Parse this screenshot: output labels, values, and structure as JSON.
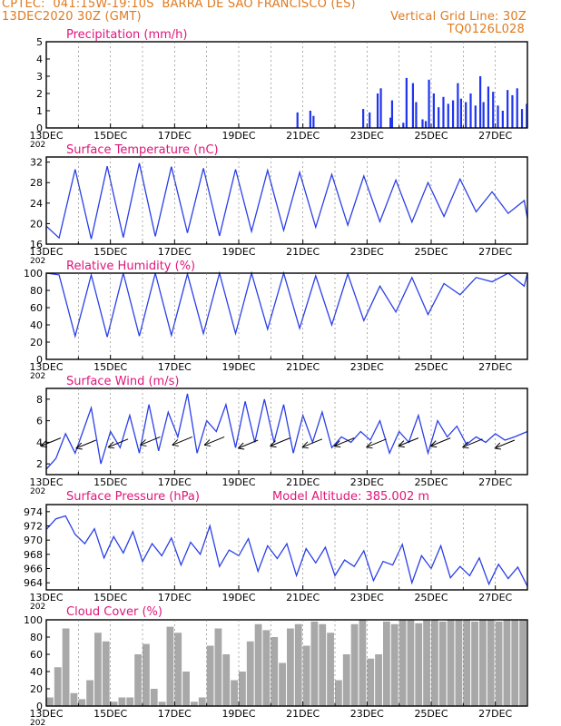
{
  "header": {
    "line1_left": "CPTEC:  041:15W-19:10S  BARRA DE SAO FRANCISCO (ES)",
    "line2_left": "13DEC2020 30Z (GMT)",
    "line2_right": "Vertical Grid Line: 30Z",
    "line3_right": "TQ0126L028"
  },
  "x_tick_labels": [
    "13DEC",
    "15DEC",
    "17DEC",
    "19DEC",
    "21DEC",
    "23DEC",
    "25DEC",
    "27DEC"
  ],
  "x_clip_label": "202",
  "colors": {
    "line": "#2a3fe8",
    "bar": "#1f34f0",
    "cloud": "#a8a8a8",
    "title": "#e0157a",
    "header": "#e07a1e",
    "vector": "#000000"
  },
  "chart_data": [
    {
      "type": "bar",
      "title": "Precipitation  (mm/h)",
      "ylim": [
        0,
        5
      ],
      "yticks": [
        "0",
        "1",
        "2",
        "3",
        "4",
        "5"
      ],
      "x": [
        7.8,
        8.2,
        8.3,
        9.85,
        10.05,
        10.3,
        10.4,
        10.7,
        10.75,
        11.1,
        11.2,
        11.4,
        11.5,
        11.7,
        11.8,
        11.9,
        12.05,
        12.2,
        12.35,
        12.5,
        12.65,
        12.8,
        12.9,
        13.05,
        13.2,
        13.35,
        13.5,
        13.6,
        13.75,
        13.9,
        14.05,
        14.2,
        14.35,
        14.5,
        14.65,
        14.8,
        14.95
      ],
      "values": [
        0.9,
        1.0,
        0.7,
        1.1,
        0.9,
        2.0,
        2.3,
        0.6,
        1.6,
        0.3,
        2.9,
        2.6,
        1.5,
        0.5,
        0.4,
        2.8,
        2.0,
        1.2,
        1.8,
        1.4,
        1.6,
        2.6,
        1.7,
        1.5,
        2.0,
        1.3,
        3.0,
        1.5,
        2.4,
        2.1,
        1.3,
        1.0,
        2.2,
        1.9,
        2.3,
        1.1,
        1.4
      ]
    },
    {
      "type": "line",
      "title": "Surface Temperature  (nC)",
      "ylim": [
        16,
        33
      ],
      "yticks": [
        "16",
        "20",
        "24",
        "28",
        "32"
      ],
      "series": [
        {
          "x": [
            0,
            0.4,
            0.9,
            1.4,
            1.9,
            2.4,
            2.9,
            3.4,
            3.9,
            4.4,
            4.9,
            5.4,
            5.9,
            6.4,
            6.9,
            7.4,
            7.9,
            8.4,
            8.9,
            9.4,
            9.9,
            10.4,
            10.9,
            11.4,
            11.9,
            12.4,
            12.9,
            13.4,
            13.9,
            14.4,
            14.9,
            15.0
          ],
          "values": [
            19.5,
            17.2,
            30.6,
            17.0,
            31.2,
            17.3,
            31.8,
            17.5,
            31.1,
            18.2,
            30.8,
            17.6,
            30.6,
            18.5,
            30.4,
            18.7,
            30.0,
            19.3,
            29.6,
            19.7,
            29.3,
            20.4,
            28.5,
            20.3,
            28.0,
            21.4,
            28.7,
            22.3,
            26.2,
            22.0,
            24.5,
            21.0
          ]
        }
      ]
    },
    {
      "type": "line",
      "title": "Relative Humidity  (%)",
      "ylim": [
        0,
        100
      ],
      "yticks": [
        "0",
        "20",
        "40",
        "60",
        "80",
        "100"
      ],
      "series": [
        {
          "x": [
            0,
            0.4,
            0.9,
            1.4,
            1.9,
            2.4,
            2.9,
            3.4,
            3.9,
            4.4,
            4.9,
            5.4,
            5.9,
            6.4,
            6.9,
            7.4,
            7.9,
            8.4,
            8.9,
            9.4,
            9.9,
            10.4,
            10.9,
            11.4,
            11.9,
            12.4,
            12.9,
            13.4,
            13.9,
            14.4,
            14.9,
            15.0
          ],
          "values": [
            100,
            98,
            27,
            98,
            26,
            100,
            27,
            100,
            28,
            99,
            30,
            100,
            30,
            100,
            35,
            100,
            36,
            97,
            40,
            99,
            45,
            85,
            55,
            95,
            52,
            88,
            75,
            95,
            90,
            100,
            85,
            100
          ]
        }
      ]
    },
    {
      "type": "line",
      "title": "Surface Wind  (m/s)",
      "ylim": [
        1,
        9
      ],
      "yticks": [
        "2",
        "4",
        "6",
        "8"
      ],
      "series": [
        {
          "x": [
            0,
            0.3,
            0.6,
            0.9,
            1.2,
            1.4,
            1.7,
            2.0,
            2.3,
            2.6,
            2.9,
            3.2,
            3.5,
            3.8,
            4.1,
            4.4,
            4.7,
            5.0,
            5.3,
            5.6,
            5.9,
            6.2,
            6.5,
            6.8,
            7.1,
            7.4,
            7.7,
            8.0,
            8.3,
            8.6,
            8.9,
            9.2,
            9.5,
            9.8,
            10.1,
            10.4,
            10.7,
            11.0,
            11.3,
            11.6,
            11.9,
            12.2,
            12.5,
            12.8,
            13.1,
            13.4,
            13.7,
            14.0,
            14.3,
            14.6,
            15.0
          ],
          "values": [
            1.5,
            2.5,
            4.8,
            3.0,
            5.5,
            7.2,
            2.0,
            5.0,
            3.5,
            6.5,
            3.0,
            7.5,
            3.2,
            6.8,
            4.5,
            8.5,
            3.0,
            6.0,
            5.0,
            7.5,
            3.5,
            7.8,
            4.0,
            8.0,
            4.0,
            7.5,
            3.0,
            6.5,
            4.0,
            6.8,
            3.5,
            4.5,
            4.0,
            5.0,
            4.2,
            6.0,
            3.0,
            5.0,
            4.0,
            6.5,
            3.0,
            6.0,
            4.5,
            5.5,
            3.8,
            4.5,
            4.0,
            4.8,
            4.2,
            4.5,
            5.0
          ]
        }
      ],
      "vectors": {
        "x": [
          0.45,
          1.55,
          2.55,
          3.55,
          4.55,
          5.55,
          6.6,
          7.6,
          8.6,
          9.6,
          10.6,
          11.6,
          12.6,
          13.6,
          14.6
        ],
        "values": [
          4.4,
          4.2,
          4.3,
          4.5,
          4.5,
          4.5,
          4.2,
          4.4,
          4.3,
          4.4,
          4.3,
          4.4,
          4.4,
          4.3,
          4.2
        ]
      }
    },
    {
      "type": "line",
      "title": "Surface Pressure  (hPa)",
      "annotation": "Model Altitude: 385.002 m",
      "ylim": [
        963,
        975
      ],
      "yticks": [
        "964",
        "966",
        "968",
        "970",
        "972",
        "974"
      ],
      "series": [
        {
          "x": [
            0,
            0.3,
            0.6,
            0.9,
            1.2,
            1.5,
            1.8,
            2.1,
            2.4,
            2.7,
            3.0,
            3.3,
            3.6,
            3.9,
            4.2,
            4.5,
            4.8,
            5.1,
            5.4,
            5.7,
            6.0,
            6.3,
            6.6,
            6.9,
            7.2,
            7.5,
            7.8,
            8.1,
            8.4,
            8.7,
            9.0,
            9.3,
            9.6,
            9.9,
            10.2,
            10.5,
            10.8,
            11.1,
            11.4,
            11.7,
            12.0,
            12.3,
            12.6,
            12.9,
            13.2,
            13.5,
            13.8,
            14.1,
            14.4,
            14.7,
            15.0
          ],
          "values": [
            971.5,
            973.0,
            973.4,
            970.8,
            969.5,
            971.6,
            967.5,
            970.5,
            968.2,
            971.2,
            967.0,
            969.5,
            967.8,
            970.3,
            966.5,
            969.7,
            968.0,
            972.0,
            966.3,
            968.6,
            967.8,
            970.2,
            965.6,
            969.2,
            967.4,
            969.5,
            965.0,
            968.8,
            966.8,
            969.0,
            965.0,
            967.2,
            966.3,
            968.5,
            964.3,
            967.0,
            966.5,
            969.4,
            964.0,
            967.8,
            966.0,
            969.2,
            964.7,
            966.3,
            965.0,
            967.5,
            963.8,
            966.6,
            964.6,
            966.2,
            963.5
          ]
        }
      ]
    },
    {
      "type": "bar",
      "title": "Cloud Cover  (%)",
      "ylim": [
        0,
        100
      ],
      "yticks": [
        "0",
        "20",
        "40",
        "60",
        "80",
        "100"
      ],
      "x": [
        0.0,
        0.25,
        0.5,
        0.75,
        1.0,
        1.25,
        1.5,
        1.75,
        2.0,
        2.25,
        2.5,
        2.75,
        3.0,
        3.25,
        3.5,
        3.75,
        4.0,
        4.25,
        4.5,
        4.75,
        5.0,
        5.25,
        5.5,
        5.75,
        6.0,
        6.25,
        6.5,
        6.75,
        7.0,
        7.25,
        7.5,
        7.75,
        8.0,
        8.25,
        8.5,
        8.75,
        9.0,
        9.25,
        9.5,
        9.75,
        10.0,
        10.25,
        10.5,
        10.75,
        11.0,
        11.25,
        11.5,
        11.75,
        12.0,
        12.25,
        12.5,
        12.75,
        13.0,
        13.25,
        13.5,
        13.75,
        14.0,
        14.25,
        14.5,
        14.75
      ],
      "values": [
        10,
        45,
        90,
        15,
        8,
        30,
        85,
        75,
        5,
        10,
        10,
        60,
        72,
        20,
        5,
        92,
        85,
        40,
        5,
        10,
        70,
        90,
        60,
        30,
        40,
        75,
        95,
        88,
        80,
        50,
        90,
        95,
        70,
        98,
        95,
        85,
        30,
        60,
        95,
        100,
        55,
        60,
        98,
        95,
        100,
        100,
        96,
        100,
        100,
        98,
        100,
        100,
        100,
        98,
        100,
        100,
        98,
        100,
        100,
        100
      ]
    }
  ]
}
